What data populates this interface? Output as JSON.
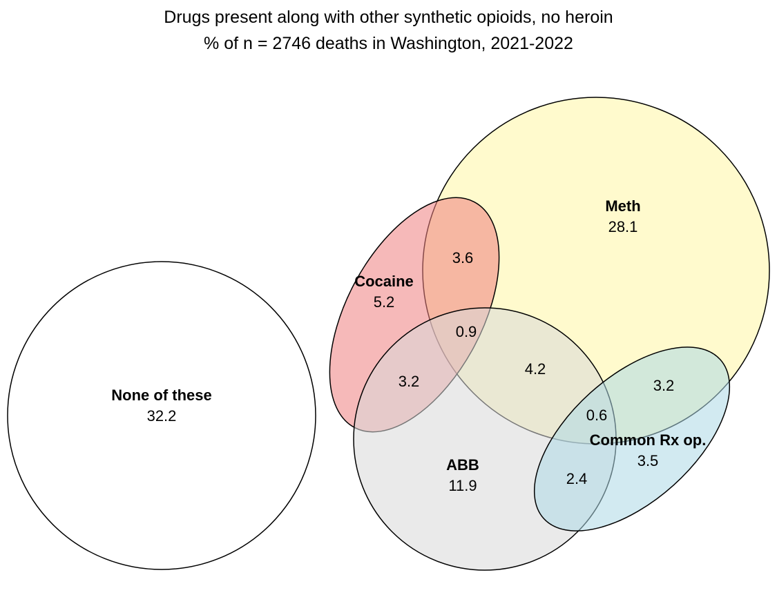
{
  "title": "Drugs present along with other synthetic opioids, no heroin",
  "subtitle": "% of n = 2746 deaths in Washington, 2021-2022",
  "sets": {
    "none": {
      "name": "None of these",
      "value": "32.2",
      "color": "#ffffff"
    },
    "meth": {
      "name": "Meth",
      "value": "28.1",
      "color": "#fff9c4"
    },
    "cocaine": {
      "name": "Cocaine",
      "value": "5.2",
      "color": "#ee7f7f"
    },
    "abb": {
      "name": "ABB",
      "value": "11.9",
      "color": "#d9d9d9"
    },
    "rx": {
      "name": "Common Rx op.",
      "value": "3.5",
      "color": "#add8e6"
    }
  },
  "intersections": {
    "cocaine_meth": "3.6",
    "cocaine_meth_abb": "0.9",
    "cocaine_abb": "3.2",
    "meth_abb": "4.2",
    "meth_rx": "3.2",
    "meth_abb_rx": "0.6",
    "abb_rx": "2.4"
  }
}
